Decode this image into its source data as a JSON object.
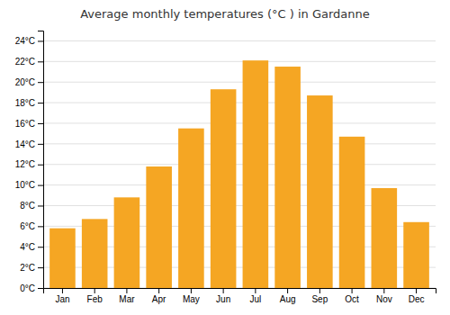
{
  "chart_data": {
    "type": "bar",
    "title": "Average monthly temperatures (°C ) in Gardanne",
    "categories": [
      "Jan",
      "Feb",
      "Mar",
      "Apr",
      "May",
      "Jun",
      "Jul",
      "Aug",
      "Sep",
      "Oct",
      "Nov",
      "Dec"
    ],
    "values": [
      5.8,
      6.7,
      8.8,
      11.8,
      15.5,
      19.3,
      22.1,
      21.5,
      18.7,
      14.7,
      9.7,
      6.4
    ],
    "color": "#F5A623",
    "ylim": [
      0,
      25
    ],
    "yticks": [
      {
        "value": 0,
        "label": "0°C"
      },
      {
        "value": 2,
        "label": "2°C"
      },
      {
        "value": 4,
        "label": "4°C"
      },
      {
        "value": 6,
        "label": "6°C"
      },
      {
        "value": 8,
        "label": "8°C"
      },
      {
        "value": 10,
        "label": "10°C"
      },
      {
        "value": 12,
        "label": "12°C"
      },
      {
        "value": 14,
        "label": "14°C"
      },
      {
        "value": 16,
        "label": "16°C"
      },
      {
        "value": 18,
        "label": "18°C"
      },
      {
        "value": 20,
        "label": "20°C"
      },
      {
        "value": 22,
        "label": "22°C"
      },
      {
        "value": 24,
        "label": "24°C"
      }
    ],
    "grid": true
  }
}
